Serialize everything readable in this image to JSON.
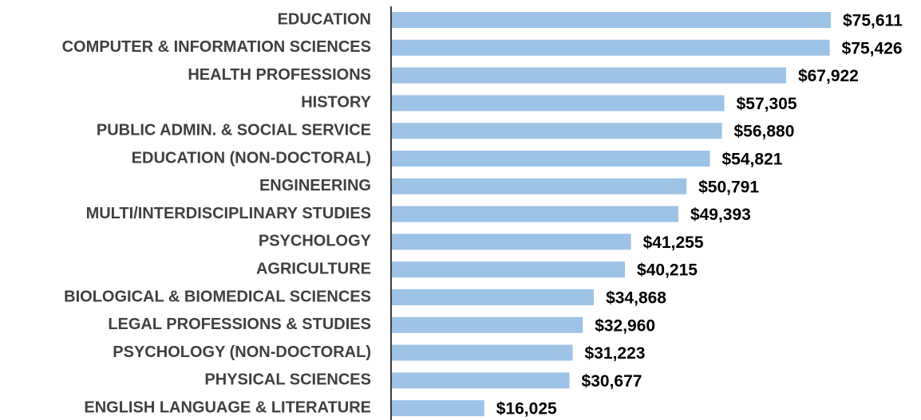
{
  "chart_data": {
    "type": "bar",
    "orientation": "horizontal",
    "categories": [
      "EDUCATION",
      "COMPUTER & INFORMATION SCIENCES",
      "HEALTH PROFESSIONS",
      "HISTORY",
      "PUBLIC ADMIN. & SOCIAL SERVICE",
      "EDUCATION (NON-DOCTORAL)",
      "ENGINEERING",
      "MULTI/INTERDISCIPLINARY STUDIES",
      "PSYCHOLOGY",
      "AGRICULTURE",
      "BIOLOGICAL & BIOMEDICAL SCIENCES",
      "LEGAL PROFESSIONS & STUDIES",
      "PSYCHOLOGY (NON-DOCTORAL)",
      "PHYSICAL SCIENCES",
      "ENGLISH LANGUAGE & LITERATURE"
    ],
    "values": [
      75611,
      75426,
      67922,
      57305,
      56880,
      54821,
      50791,
      49393,
      41255,
      40215,
      34868,
      32960,
      31223,
      30677,
      16025
    ],
    "value_labels": [
      "$75,611",
      "$75,426",
      "$67,922",
      "$57,305",
      "$56,880",
      "$54,821",
      "$50,791",
      "$49,393",
      "$41,255",
      "$40,215",
      "$34,868",
      "$32,960",
      "$31,223",
      "$30,677",
      "$16,025"
    ],
    "color": "#9dc3e6"
  }
}
